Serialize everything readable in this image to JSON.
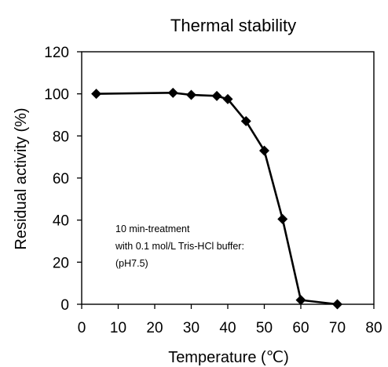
{
  "chart_data": {
    "type": "line",
    "title": "Thermal stability",
    "xlabel": "Temperature (℃)",
    "ylabel": "Residual activity (%)",
    "xlim": [
      0,
      80
    ],
    "ylim": [
      0,
      120
    ],
    "xticks": [
      0,
      10,
      20,
      30,
      40,
      50,
      60,
      70,
      80
    ],
    "yticks": [
      0,
      20,
      40,
      60,
      80,
      100,
      120
    ],
    "grid": false,
    "marker": "diamond",
    "series": [
      {
        "x": [
          4,
          25,
          30,
          37,
          40,
          45,
          50,
          55,
          60,
          70
        ],
        "y": [
          100,
          100.5,
          99.5,
          99,
          97.5,
          87,
          73,
          40.5,
          2,
          0
        ]
      }
    ],
    "annotation": {
      "lines": [
        "10 min-treatment",
        "with 0.1 mol/L Tris-HCl buffer:",
        "(pH7.5)"
      ]
    }
  }
}
